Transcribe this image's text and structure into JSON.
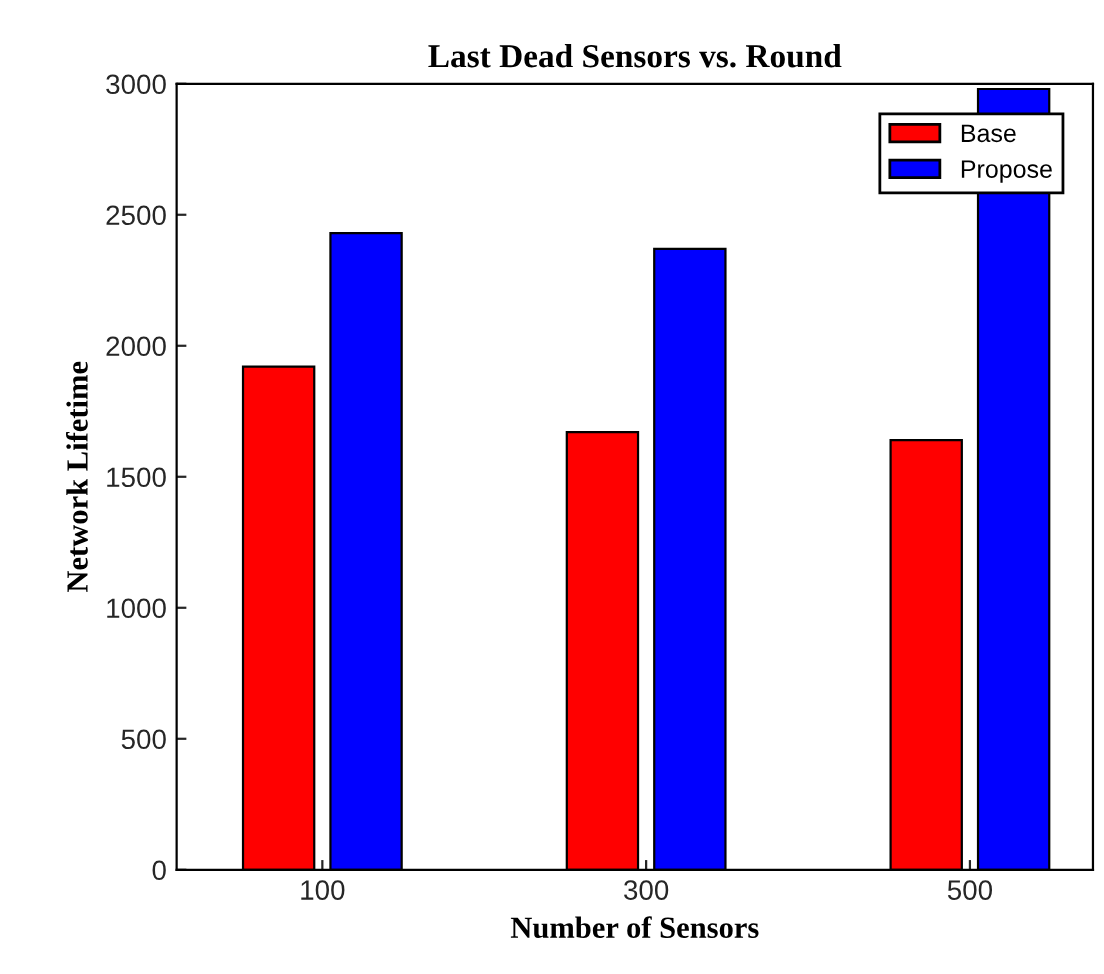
{
  "chart_data": {
    "type": "bar",
    "title": "Last Dead Sensors vs. Round",
    "xlabel": "Number of Sensors",
    "ylabel": "Network Lifetime",
    "categories": [
      "100",
      "300",
      "500"
    ],
    "series": [
      {
        "name": "Base",
        "color": "#ff0000",
        "values": [
          1920,
          1670,
          1640
        ]
      },
      {
        "name": "Propose",
        "color": "#0000ff",
        "values": [
          2430,
          2370,
          2980
        ]
      }
    ],
    "ylim": [
      0,
      3000
    ],
    "yticks": [
      0,
      500,
      1000,
      1500,
      2000,
      2500,
      3000
    ],
    "grid": false,
    "legend": "top right"
  }
}
